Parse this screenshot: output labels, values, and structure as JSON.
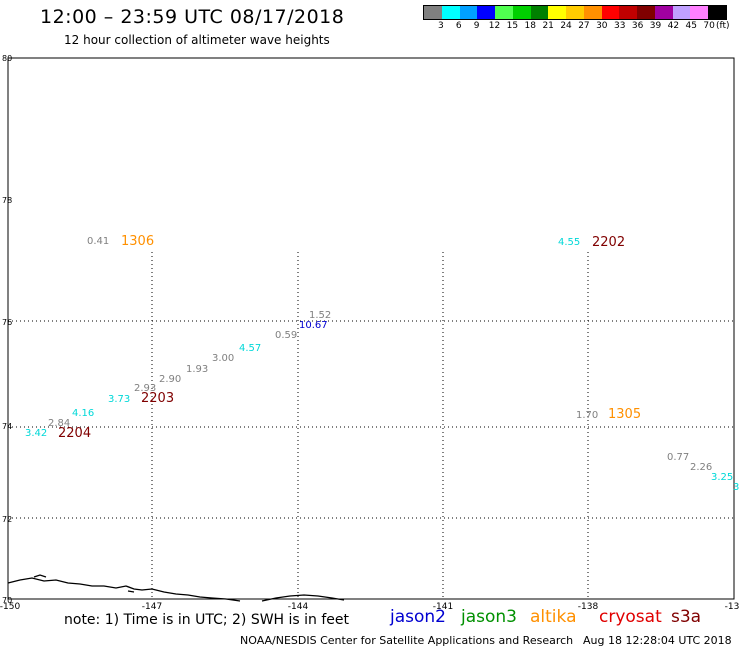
{
  "header": {
    "title": "12:00 – 23:59 UTC 08/17/2018",
    "subtitle": "12 hour collection of altimeter wave heights"
  },
  "color_scale": {
    "unit": "(ft)",
    "labels": [
      "3",
      "6",
      "9",
      "12",
      "15",
      "18",
      "21",
      "24",
      "27",
      "30",
      "33",
      "36",
      "39",
      "42",
      "45",
      "70"
    ],
    "colors": [
      "#808080",
      "#00ffff",
      "#00a0ff",
      "#0000ff",
      "#50ff50",
      "#00d000",
      "#008000",
      "#ffff00",
      "#ffcc00",
      "#ff9000",
      "#ff0000",
      "#c00000",
      "#800000",
      "#a000a0",
      "#c0a0ff",
      "#ff80ff",
      "#000000"
    ]
  },
  "map": {
    "lon_labels": [
      "-150",
      "-147",
      "-144",
      "-141",
      "-138",
      "-13"
    ],
    "lat_labels": [
      "70",
      "72",
      "74",
      "76",
      "78",
      "80"
    ],
    "track_labels": [
      {
        "text": "1306",
        "color": "#ff9000"
      },
      {
        "text": "2202",
        "color": "#800000"
      },
      {
        "text": "2203",
        "color": "#800000"
      },
      {
        "text": "2204",
        "color": "#800000"
      },
      {
        "text": "1305",
        "color": "#ff9000"
      }
    ],
    "measurements": [
      {
        "text": "0.41",
        "color": "#808080"
      },
      {
        "text": "4.55",
        "color": "#00d8d8"
      },
      {
        "text": "1.52",
        "color": "#808080"
      },
      {
        "text": "10.67",
        "color": "#0000d0"
      },
      {
        "text": "0.59",
        "color": "#808080"
      },
      {
        "text": "4.57",
        "color": "#00d8d8"
      },
      {
        "text": "3.00",
        "color": "#808080"
      },
      {
        "text": "1.93",
        "color": "#808080"
      },
      {
        "text": "2.90",
        "color": "#808080"
      },
      {
        "text": "2.93",
        "color": "#808080"
      },
      {
        "text": "3.73",
        "color": "#00d8d8"
      },
      {
        "text": "4.16",
        "color": "#00d8d8"
      },
      {
        "text": "2.84",
        "color": "#808080"
      },
      {
        "text": "3.42",
        "color": "#00d8d8"
      },
      {
        "text": "1.70",
        "color": "#808080"
      },
      {
        "text": "0.77",
        "color": "#808080"
      },
      {
        "text": "2.26",
        "color": "#808080"
      },
      {
        "text": "3.25",
        "color": "#00d8d8"
      },
      {
        "text": "3",
        "color": "#00d8d8"
      }
    ]
  },
  "footer": {
    "note": "note: 1) Time is in UTC; 2) SWH is in feet",
    "satellites": [
      {
        "name": "jason2",
        "color": "#0000d0"
      },
      {
        "name": "jason3",
        "color": "#009000"
      },
      {
        "name": "altika",
        "color": "#ff9000"
      },
      {
        "name": "cryosat",
        "color": "#e00000"
      },
      {
        "name": "s3a",
        "color": "#800000"
      }
    ],
    "credit": "NOAA/NESDIS Center for Satellite Applications and Research",
    "timestamp": "Aug 18 12:28:04 UTC 2018"
  }
}
